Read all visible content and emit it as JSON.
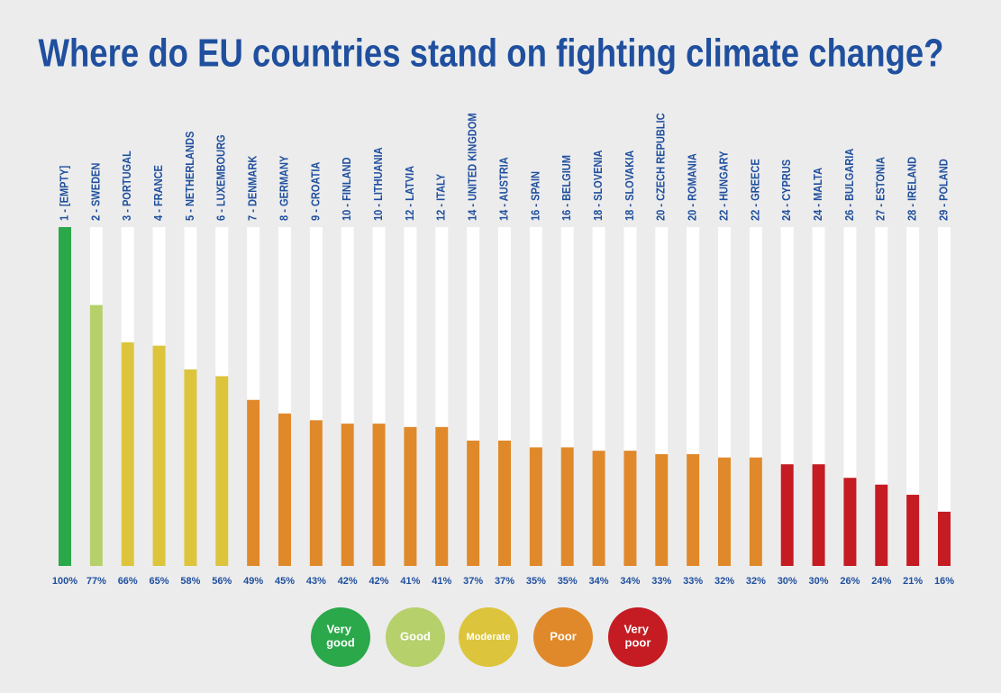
{
  "chart_data": {
    "type": "bar",
    "title": "Where do EU countries stand on fighting climate change?",
    "categories": [
      "1 - [EMPTY]",
      "2 - SWEDEN",
      "3 - PORTUGAL",
      "4 - FRANCE",
      "5 - NETHERLANDS",
      "6 - LUXEMBOURG",
      "7 - DENMARK",
      "8 - GERMANY",
      "9 - CROATIA",
      "10 - FINLAND",
      "10 - LITHUANIA",
      "12 - LATVIA",
      "12 - ITALY",
      "14 - UNITED KINGDOM",
      "14 - AUSTRIA",
      "16 - SPAIN",
      "16 - BELGIUM",
      "18 - SLOVENIA",
      "18 - SLOVAKIA",
      "20 - CZECH REPUBLIC",
      "20 - ROMANIA",
      "22 - HUNGARY",
      "22 - GREECE",
      "24 - CYPRUS",
      "24 - MALTA",
      "26 - BULGARIA",
      "27 - ESTONIA",
      "28 - IRELAND",
      "29 - POLAND"
    ],
    "values": [
      100,
      77,
      66,
      65,
      58,
      56,
      49,
      45,
      43,
      42,
      42,
      41,
      41,
      37,
      37,
      35,
      35,
      34,
      34,
      33,
      33,
      32,
      32,
      30,
      30,
      26,
      24,
      21,
      16
    ],
    "value_labels": [
      "100%",
      "77%",
      "66%",
      "65%",
      "58%",
      "56%",
      "49%",
      "45%",
      "43%",
      "42%",
      "42%",
      "41%",
      "41%",
      "37%",
      "37%",
      "35%",
      "35%",
      "34%",
      "34%",
      "33%",
      "33%",
      "32%",
      "32%",
      "30%",
      "30%",
      "26%",
      "24%",
      "21%",
      "16%"
    ],
    "colors": [
      "#2aa84a",
      "#b6d06c",
      "#dcc53c",
      "#dcc53c",
      "#dcc53c",
      "#dcc53c",
      "#e0892a",
      "#e0892a",
      "#e0892a",
      "#e0892a",
      "#e0892a",
      "#e0892a",
      "#e0892a",
      "#e0892a",
      "#e0892a",
      "#e0892a",
      "#e0892a",
      "#e0892a",
      "#e0892a",
      "#e0892a",
      "#e0892a",
      "#e0892a",
      "#e0892a",
      "#c51b22",
      "#c51b22",
      "#c51b22",
      "#c51b22",
      "#c51b22",
      "#c51b22"
    ],
    "ylim": [
      0,
      100
    ],
    "legend": [
      {
        "label": "Very good",
        "color": "#2aa84a"
      },
      {
        "label": "Good",
        "color": "#b6d06c"
      },
      {
        "label": "Moderate",
        "color": "#dcc53c"
      },
      {
        "label": "Poor",
        "color": "#e0892a"
      },
      {
        "label": "Very poor",
        "color": "#c51b22"
      }
    ]
  }
}
